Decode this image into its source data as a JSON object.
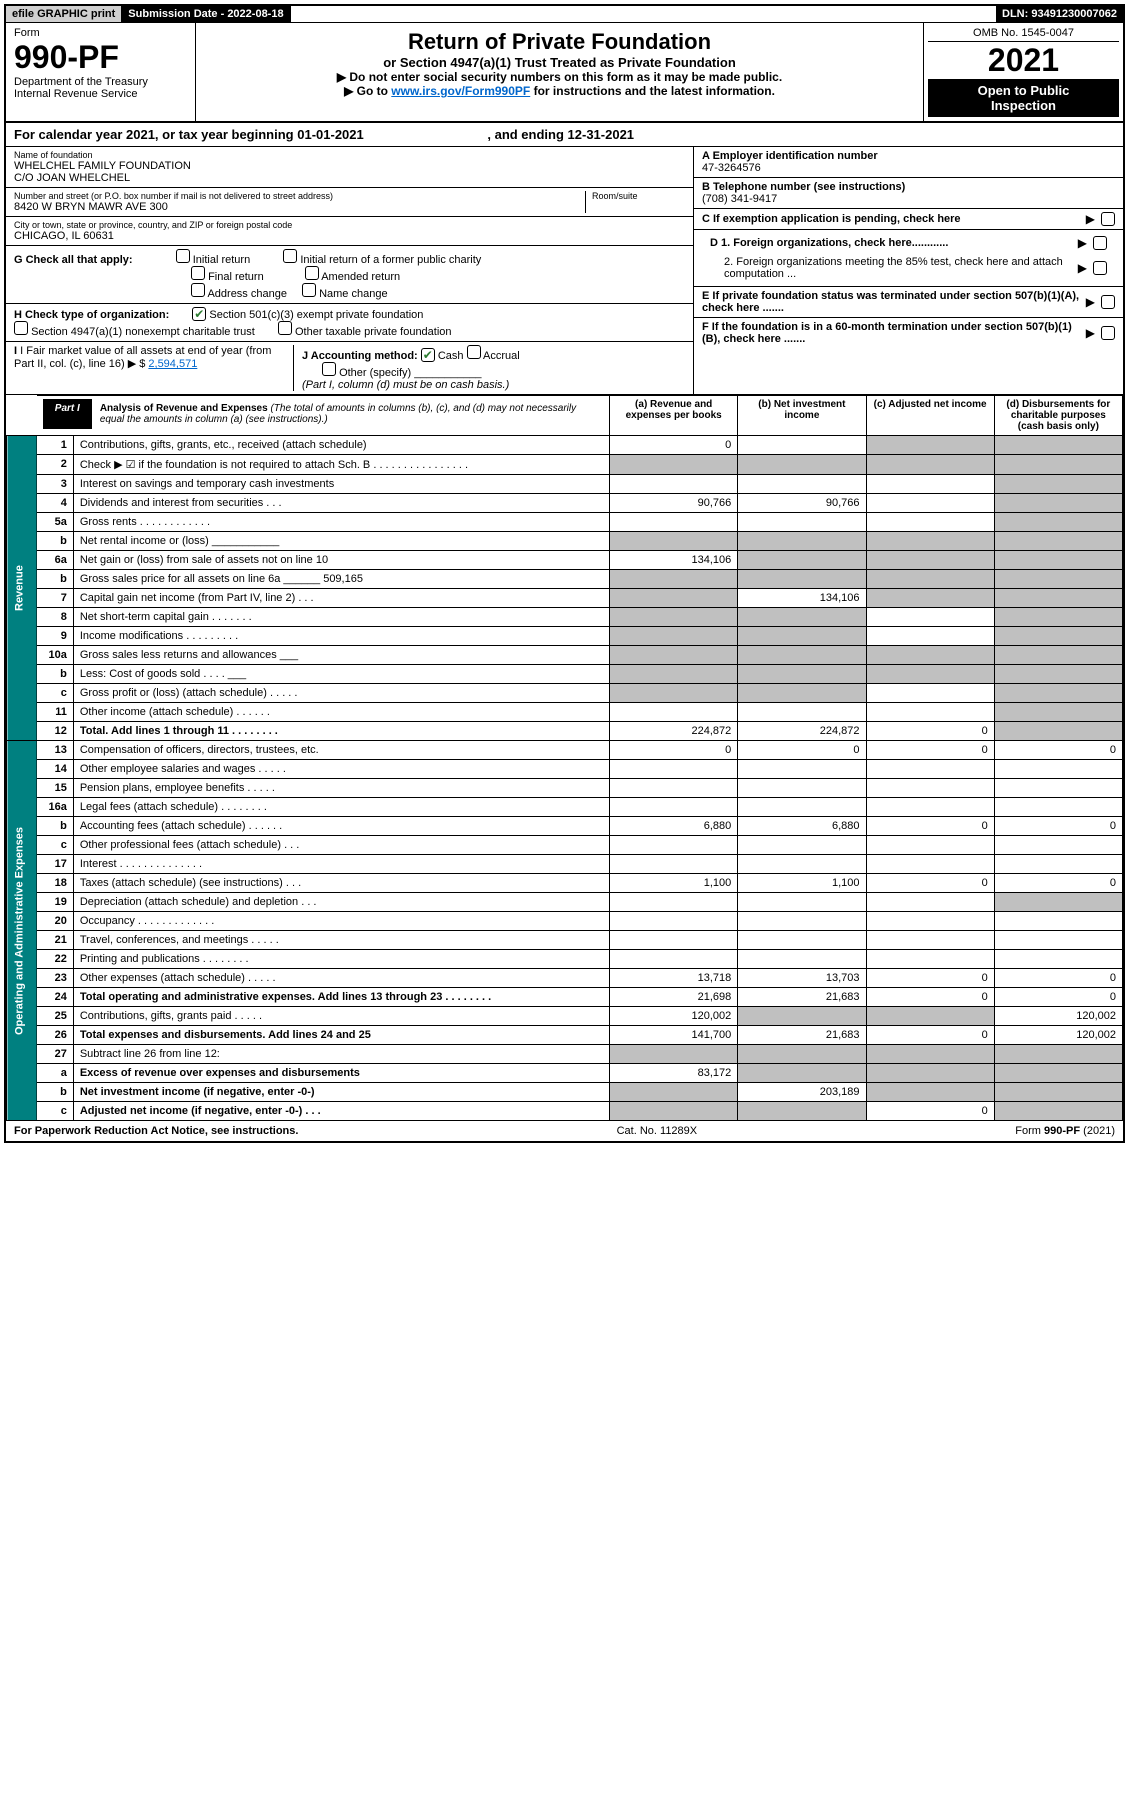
{
  "top": {
    "efile": "efile GRAPHIC print",
    "subdate": "Submission Date - 2022-08-18",
    "dln": "DLN: 93491230007062"
  },
  "header": {
    "form_label": "Form",
    "form_no": "990-PF",
    "dept": "Department of the Treasury",
    "irs": "Internal Revenue Service",
    "title": "Return of Private Foundation",
    "subtitle": "or Section 4947(a)(1) Trust Treated as Private Foundation",
    "note1": "▶ Do not enter social security numbers on this form as it may be made public.",
    "note2_pre": "▶ Go to ",
    "note2_link": "www.irs.gov/Form990PF",
    "note2_post": " for instructions and the latest information.",
    "omb": "OMB No. 1545-0047",
    "year": "2021",
    "inspect1": "Open to Public",
    "inspect2": "Inspection"
  },
  "calyear": {
    "pre": "For calendar year 2021, or tax year beginning ",
    "begin": "01-01-2021",
    "mid": " , and ending ",
    "end": "12-31-2021"
  },
  "id": {
    "name_lbl": "Name of foundation",
    "name1": "WHELCHEL FAMILY FOUNDATION",
    "name2": "C/O JOAN WHELCHEL",
    "addr_lbl": "Number and street (or P.O. box number if mail is not delivered to street address)",
    "addr": "8420 W BRYN MAWR AVE 300",
    "room_lbl": "Room/suite",
    "city_lbl": "City or town, state or province, country, and ZIP or foreign postal code",
    "city": "CHICAGO, IL  60631",
    "ein_lbl": "A Employer identification number",
    "ein": "47-3264576",
    "tel_lbl": "B Telephone number (see instructions)",
    "tel": "(708) 341-9417",
    "c": "C If exemption application is pending, check here",
    "d1": "D 1. Foreign organizations, check here............",
    "d2": "2. Foreign organizations meeting the 85% test, check here and attach computation ...",
    "e": "E If private foundation status was terminated under section 507(b)(1)(A), check here .......",
    "f": "F If the foundation is in a 60-month termination under section 507(b)(1)(B), check here .......",
    "g": "G Check all that apply:",
    "g_opts": [
      "Initial return",
      "Final return",
      "Address change",
      "Initial return of a former public charity",
      "Amended return",
      "Name change"
    ],
    "h": "H Check type of organization:",
    "h1": "Section 501(c)(3) exempt private foundation",
    "h2": "Section 4947(a)(1) nonexempt charitable trust",
    "h3": "Other taxable private foundation",
    "i_pre": "I Fair market value of all assets at end of year (from Part II, col. (c), line 16) ▶ $ ",
    "i_val": "2,594,571",
    "j": "J Accounting method:",
    "j_cash": "Cash",
    "j_accrual": "Accrual",
    "j_other": "Other (specify)",
    "j_note": "(Part I, column (d) must be on cash basis.)"
  },
  "part1": {
    "tab": "Part I",
    "title": "Analysis of Revenue and Expenses ",
    "note": "(The total of amounts in columns (b), (c), and (d) may not necessarily equal the amounts in column (a) (see instructions).)",
    "col_a": "(a) Revenue and expenses per books",
    "col_b": "(b) Net investment income",
    "col_c": "(c) Adjusted net income",
    "col_d": "(d) Disbursements for charitable purposes (cash basis only)"
  },
  "sides": {
    "rev": "Revenue",
    "exp": "Operating and Administrative Expenses"
  },
  "rows": [
    {
      "n": "1",
      "d": "Contributions, gifts, grants, etc., received (attach schedule)",
      "a": "0",
      "b": "",
      "c": "s",
      "dv": "s"
    },
    {
      "n": "2",
      "d": "Check ▶ ☑ if the foundation is not required to attach Sch. B  .  .  .  .  .  .  .  .  .  .  .  .  .  .  .  .",
      "a": "s",
      "b": "s",
      "c": "s",
      "dv": "s"
    },
    {
      "n": "3",
      "d": "Interest on savings and temporary cash investments",
      "a": "",
      "b": "",
      "c": "",
      "dv": "s"
    },
    {
      "n": "4",
      "d": "Dividends and interest from securities  .  .  .",
      "a": "90,766",
      "b": "90,766",
      "c": "",
      "dv": "s"
    },
    {
      "n": "5a",
      "d": "Gross rents  .  .  .  .  .  .  .  .  .  .  .  .",
      "a": "",
      "b": "",
      "c": "",
      "dv": "s"
    },
    {
      "n": "b",
      "d": "Net rental income or (loss)  ___________",
      "a": "s",
      "b": "s",
      "c": "s",
      "dv": "s"
    },
    {
      "n": "6a",
      "d": "Net gain or (loss) from sale of assets not on line 10",
      "a": "134,106",
      "b": "s",
      "c": "s",
      "dv": "s"
    },
    {
      "n": "b",
      "d": "Gross sales price for all assets on line 6a ______ 509,165",
      "a": "s",
      "b": "s",
      "c": "s",
      "dv": "s"
    },
    {
      "n": "7",
      "d": "Capital gain net income (from Part IV, line 2)  .  .  .",
      "a": "s",
      "b": "134,106",
      "c": "s",
      "dv": "s"
    },
    {
      "n": "8",
      "d": "Net short-term capital gain  .  .  .  .  .  .  .",
      "a": "s",
      "b": "s",
      "c": "",
      "dv": "s"
    },
    {
      "n": "9",
      "d": "Income modifications  .  .  .  .  .  .  .  .  .",
      "a": "s",
      "b": "s",
      "c": "",
      "dv": "s"
    },
    {
      "n": "10a",
      "d": "Gross sales less returns and allowances  ___",
      "a": "s",
      "b": "s",
      "c": "s",
      "dv": "s"
    },
    {
      "n": "b",
      "d": "Less: Cost of goods sold  .  .  .  .  ___",
      "a": "s",
      "b": "s",
      "c": "s",
      "dv": "s"
    },
    {
      "n": "c",
      "d": "Gross profit or (loss) (attach schedule)  .  .  .  .  .",
      "a": "s",
      "b": "s",
      "c": "",
      "dv": "s"
    },
    {
      "n": "11",
      "d": "Other income (attach schedule)  .  .  .  .  .  .",
      "a": "",
      "b": "",
      "c": "",
      "dv": "s"
    },
    {
      "n": "12",
      "d": "Total. Add lines 1 through 11  .  .  .  .  .  .  .  .",
      "a": "224,872",
      "b": "224,872",
      "c": "0",
      "dv": "s",
      "bold": true
    },
    {
      "n": "13",
      "d": "Compensation of officers, directors, trustees, etc.",
      "a": "0",
      "b": "0",
      "c": "0",
      "dv": "0"
    },
    {
      "n": "14",
      "d": "Other employee salaries and wages  .  .  .  .  .",
      "a": "",
      "b": "",
      "c": "",
      "dv": ""
    },
    {
      "n": "15",
      "d": "Pension plans, employee benefits  .  .  .  .  .",
      "a": "",
      "b": "",
      "c": "",
      "dv": ""
    },
    {
      "n": "16a",
      "d": "Legal fees (attach schedule)  .  .  .  .  .  .  .  .",
      "a": "",
      "b": "",
      "c": "",
      "dv": ""
    },
    {
      "n": "b",
      "d": "Accounting fees (attach schedule)  .  .  .  .  .  .",
      "a": "6,880",
      "b": "6,880",
      "c": "0",
      "dv": "0"
    },
    {
      "n": "c",
      "d": "Other professional fees (attach schedule)  .  .  .",
      "a": "",
      "b": "",
      "c": "",
      "dv": ""
    },
    {
      "n": "17",
      "d": "Interest  .  .  .  .  .  .  .  .  .  .  .  .  .  .",
      "a": "",
      "b": "",
      "c": "",
      "dv": ""
    },
    {
      "n": "18",
      "d": "Taxes (attach schedule) (see instructions)  .  .  .",
      "a": "1,100",
      "b": "1,100",
      "c": "0",
      "dv": "0"
    },
    {
      "n": "19",
      "d": "Depreciation (attach schedule) and depletion  .  .  .",
      "a": "",
      "b": "",
      "c": "",
      "dv": "s"
    },
    {
      "n": "20",
      "d": "Occupancy  .  .  .  .  .  .  .  .  .  .  .  .  .",
      "a": "",
      "b": "",
      "c": "",
      "dv": ""
    },
    {
      "n": "21",
      "d": "Travel, conferences, and meetings  .  .  .  .  .",
      "a": "",
      "b": "",
      "c": "",
      "dv": ""
    },
    {
      "n": "22",
      "d": "Printing and publications  .  .  .  .  .  .  .  .",
      "a": "",
      "b": "",
      "c": "",
      "dv": ""
    },
    {
      "n": "23",
      "d": "Other expenses (attach schedule)  .  .  .  .  .",
      "a": "13,718",
      "b": "13,703",
      "c": "0",
      "dv": "0"
    },
    {
      "n": "24",
      "d": "Total operating and administrative expenses. Add lines 13 through 23  .  .  .  .  .  .  .  .",
      "a": "21,698",
      "b": "21,683",
      "c": "0",
      "dv": "0",
      "bold": true
    },
    {
      "n": "25",
      "d": "Contributions, gifts, grants paid  .  .  .  .  .",
      "a": "120,002",
      "b": "s",
      "c": "s",
      "dv": "120,002"
    },
    {
      "n": "26",
      "d": "Total expenses and disbursements. Add lines 24 and 25",
      "a": "141,700",
      "b": "21,683",
      "c": "0",
      "dv": "120,002",
      "bold": true
    },
    {
      "n": "27",
      "d": "Subtract line 26 from line 12:",
      "a": "s",
      "b": "s",
      "c": "s",
      "dv": "s"
    },
    {
      "n": "a",
      "d": "Excess of revenue over expenses and disbursements",
      "a": "83,172",
      "b": "s",
      "c": "s",
      "dv": "s",
      "bold": true
    },
    {
      "n": "b",
      "d": "Net investment income (if negative, enter -0-)",
      "a": "s",
      "b": "203,189",
      "c": "s",
      "dv": "s",
      "bold": true
    },
    {
      "n": "c",
      "d": "Adjusted net income (if negative, enter -0-)  .  .  .",
      "a": "s",
      "b": "s",
      "c": "0",
      "dv": "s",
      "bold": true
    }
  ],
  "footer": {
    "left": "For Paperwork Reduction Act Notice, see instructions.",
    "mid": "Cat. No. 11289X",
    "right": "Form 990-PF (2021)"
  }
}
